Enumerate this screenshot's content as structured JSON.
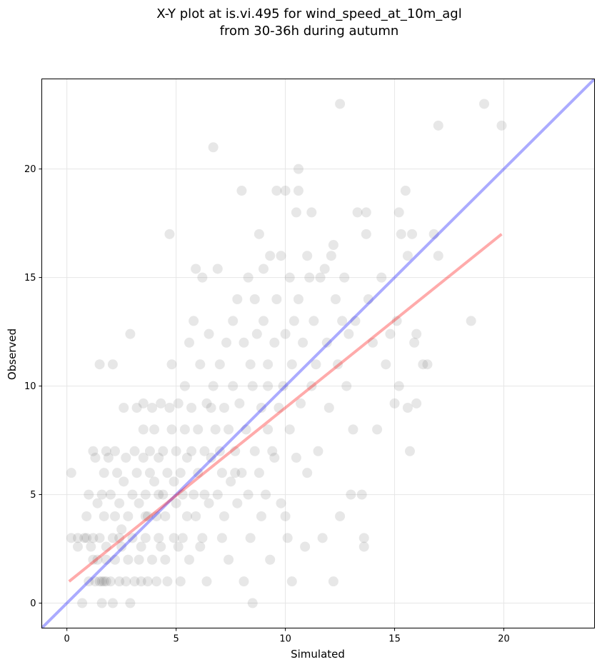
{
  "chart_data": {
    "type": "scatter",
    "title": "X-Y plot at is.vi.495 for wind_speed_at_10m_agl",
    "subtitle": "from 30-36h during autumn",
    "xlabel": "Simulated",
    "ylabel": "Observed",
    "xlim": [
      -1.15,
      24.15
    ],
    "ylim": [
      -1.15,
      24.15
    ],
    "xticks": [
      0,
      5,
      10,
      15,
      20
    ],
    "yticks": [
      0,
      5,
      10,
      15,
      20
    ],
    "grid": true,
    "point_color": "#555555",
    "series": [
      {
        "values": [
          [
            0.2,
            6
          ],
          [
            0.2,
            3
          ],
          [
            0.5,
            3
          ],
          [
            0.5,
            2.6
          ],
          [
            0.7,
            0
          ],
          [
            0.8,
            3
          ],
          [
            0.9,
            4
          ],
          [
            1.0,
            5
          ],
          [
            0.9,
            3
          ],
          [
            1.0,
            1
          ],
          [
            1.1,
            2.6
          ],
          [
            1.2,
            2
          ],
          [
            1.2,
            3
          ],
          [
            1.3,
            1
          ],
          [
            1.2,
            7
          ],
          [
            1.3,
            6.7
          ],
          [
            1.4,
            4.6
          ],
          [
            1.4,
            2
          ],
          [
            1.5,
            1
          ],
          [
            1.5,
            3
          ],
          [
            1.6,
            5
          ],
          [
            1.6,
            0
          ],
          [
            1.7,
            6
          ],
          [
            1.7,
            4
          ],
          [
            1.7,
            1
          ],
          [
            1.8,
            2
          ],
          [
            1.8,
            2.6
          ],
          [
            1.8,
            7
          ],
          [
            1.9,
            6.7
          ],
          [
            2.0,
            1
          ],
          [
            2.0,
            5
          ],
          [
            2.1,
            3
          ],
          [
            2.1,
            0
          ],
          [
            2.2,
            4
          ],
          [
            2.2,
            2
          ],
          [
            2.3,
            6
          ],
          [
            2.2,
            7
          ],
          [
            2.4,
            1
          ],
          [
            2.4,
            4.6
          ],
          [
            2.5,
            2.6
          ],
          [
            2.5,
            3.4
          ],
          [
            2.6,
            5.6
          ],
          [
            2.6,
            9
          ],
          [
            2.7,
            1
          ],
          [
            2.7,
            6.7
          ],
          [
            2.8,
            4
          ],
          [
            2.8,
            2
          ],
          [
            2.9,
            12.4
          ],
          [
            2.9,
            0
          ],
          [
            3.0,
            5
          ],
          [
            3.0,
            3
          ],
          [
            3.1,
            7
          ],
          [
            3.1,
            1
          ],
          [
            3.2,
            9
          ],
          [
            3.2,
            6
          ],
          [
            3.3,
            2
          ],
          [
            3.3,
            4.6
          ],
          [
            3.4,
            2.6
          ],
          [
            3.4,
            1
          ],
          [
            3.5,
            9.2
          ],
          [
            3.5,
            6.7
          ],
          [
            3.5,
            8
          ],
          [
            3.6,
            5
          ],
          [
            3.6,
            3
          ],
          [
            3.7,
            4
          ],
          [
            3.7,
            1
          ],
          [
            3.8,
            7
          ],
          [
            3.8,
            6
          ],
          [
            3.9,
            9
          ],
          [
            3.9,
            2
          ],
          [
            4.0,
            8
          ],
          [
            4.0,
            5.6
          ],
          [
            4.1,
            4
          ],
          [
            4.1,
            1
          ],
          [
            4.2,
            6.7
          ],
          [
            4.2,
            3
          ],
          [
            4.3,
            9.2
          ],
          [
            4.3,
            2.6
          ],
          [
            4.4,
            5
          ],
          [
            4.4,
            7
          ],
          [
            4.5,
            4
          ],
          [
            4.5,
            2
          ],
          [
            4.6,
            6
          ],
          [
            4.6,
            1
          ],
          [
            4.7,
            9
          ],
          [
            4.7,
            17
          ],
          [
            4.8,
            11
          ],
          [
            4.8,
            8
          ],
          [
            4.9,
            3
          ],
          [
            4.9,
            5.6
          ],
          [
            5.0,
            7
          ],
          [
            5.0,
            4.6
          ],
          [
            5.1,
            9.2
          ],
          [
            5.1,
            2.6
          ],
          [
            5.2,
            6
          ],
          [
            5.2,
            1
          ],
          [
            5.3,
            5
          ],
          [
            5.3,
            3
          ],
          [
            5.4,
            10
          ],
          [
            5.4,
            8
          ],
          [
            5.5,
            4
          ],
          [
            5.5,
            6.7
          ],
          [
            5.6,
            12
          ],
          [
            5.6,
            2
          ],
          [
            5.7,
            7
          ],
          [
            5.7,
            9
          ],
          [
            5.8,
            13
          ],
          [
            5.8,
            5
          ],
          [
            5.9,
            15.4
          ],
          [
            5.9,
            4
          ],
          [
            6.0,
            6
          ],
          [
            6.0,
            8
          ],
          [
            6.1,
            11
          ],
          [
            6.1,
            2.6
          ],
          [
            6.2,
            3
          ],
          [
            6.2,
            15
          ],
          [
            6.3,
            5
          ],
          [
            6.3,
            7
          ],
          [
            6.4,
            1
          ],
          [
            6.4,
            9.2
          ],
          [
            6.5,
            12.4
          ],
          [
            6.5,
            4.6
          ],
          [
            6.6,
            6.7
          ],
          [
            6.7,
            10
          ],
          [
            6.7,
            21
          ],
          [
            6.8,
            8
          ],
          [
            6.9,
            5
          ],
          [
            6.9,
            15.4
          ],
          [
            7.0,
            7
          ],
          [
            7.0,
            11
          ],
          [
            7.1,
            3
          ],
          [
            7.1,
            6
          ],
          [
            7.2,
            9
          ],
          [
            7.2,
            4
          ],
          [
            7.3,
            12
          ],
          [
            7.4,
            8
          ],
          [
            7.4,
            2
          ],
          [
            7.5,
            5.6
          ],
          [
            7.6,
            13
          ],
          [
            7.6,
            10
          ],
          [
            7.7,
            7
          ],
          [
            7.8,
            14
          ],
          [
            7.8,
            4.6
          ],
          [
            7.9,
            9.2
          ],
          [
            8.0,
            19
          ],
          [
            8.0,
            6
          ],
          [
            8.1,
            1
          ],
          [
            8.1,
            12
          ],
          [
            8.2,
            8
          ],
          [
            8.3,
            15
          ],
          [
            8.3,
            5
          ],
          [
            8.4,
            11
          ],
          [
            8.4,
            3
          ],
          [
            8.5,
            10
          ],
          [
            8.5,
            0
          ],
          [
            8.6,
            7
          ],
          [
            8.6,
            14
          ],
          [
            8.7,
            12.4
          ],
          [
            8.8,
            17
          ],
          [
            8.8,
            6
          ],
          [
            8.9,
            9
          ],
          [
            8.9,
            4
          ],
          [
            9.0,
            13
          ],
          [
            9.0,
            15.4
          ],
          [
            9.1,
            5
          ],
          [
            9.2,
            11
          ],
          [
            9.2,
            8
          ],
          [
            9.3,
            16
          ],
          [
            9.3,
            2
          ],
          [
            9.4,
            7
          ],
          [
            9.5,
            12
          ],
          [
            9.5,
            6.7
          ],
          [
            9.6,
            14
          ],
          [
            9.6,
            19
          ],
          [
            9.7,
            9
          ],
          [
            9.8,
            16
          ],
          [
            9.8,
            4.6
          ],
          [
            9.9,
            10
          ],
          [
            10.0,
            19
          ],
          [
            10.0,
            4
          ],
          [
            10.0,
            12.4
          ],
          [
            10.1,
            3
          ],
          [
            10.2,
            15
          ],
          [
            10.2,
            8
          ],
          [
            10.3,
            11
          ],
          [
            10.3,
            1
          ],
          [
            10.4,
            13
          ],
          [
            10.5,
            18
          ],
          [
            10.5,
            6.7
          ],
          [
            10.6,
            20
          ],
          [
            10.6,
            14
          ],
          [
            10.6,
            19
          ],
          [
            10.7,
            9.2
          ],
          [
            10.8,
            12
          ],
          [
            10.9,
            2.6
          ],
          [
            11.0,
            16
          ],
          [
            11.0,
            6
          ],
          [
            11.1,
            15
          ],
          [
            11.2,
            18
          ],
          [
            11.2,
            10
          ],
          [
            11.3,
            13
          ],
          [
            11.4,
            11
          ],
          [
            11.5,
            7
          ],
          [
            11.6,
            15
          ],
          [
            11.7,
            3
          ],
          [
            11.8,
            15.4
          ],
          [
            11.9,
            12
          ],
          [
            12.0,
            9
          ],
          [
            12.1,
            16
          ],
          [
            12.2,
            16.5
          ],
          [
            12.2,
            1
          ],
          [
            12.3,
            14
          ],
          [
            12.4,
            11
          ],
          [
            12.5,
            23
          ],
          [
            12.5,
            4
          ],
          [
            12.6,
            13
          ],
          [
            12.7,
            15
          ],
          [
            12.8,
            10
          ],
          [
            12.9,
            12.4
          ],
          [
            13.0,
            5
          ],
          [
            13.1,
            8
          ],
          [
            13.2,
            13
          ],
          [
            13.3,
            18
          ],
          [
            13.5,
            5
          ],
          [
            13.6,
            3
          ],
          [
            13.6,
            2.6
          ],
          [
            13.7,
            17
          ],
          [
            13.7,
            18
          ],
          [
            13.8,
            14
          ],
          [
            14.0,
            12
          ],
          [
            14.2,
            8
          ],
          [
            14.4,
            15
          ],
          [
            14.6,
            11
          ],
          [
            14.8,
            12.4
          ],
          [
            15.0,
            9.2
          ],
          [
            15.1,
            13
          ],
          [
            15.2,
            18
          ],
          [
            15.2,
            10
          ],
          [
            15.3,
            17
          ],
          [
            15.5,
            19
          ],
          [
            15.6,
            16
          ],
          [
            15.6,
            9
          ],
          [
            15.7,
            7
          ],
          [
            15.8,
            17
          ],
          [
            15.9,
            12
          ],
          [
            16.0,
            9.2
          ],
          [
            16.0,
            12.4
          ],
          [
            16.3,
            11
          ],
          [
            16.5,
            11
          ],
          [
            16.8,
            17
          ],
          [
            17.0,
            22
          ],
          [
            17.0,
            16
          ],
          [
            18.5,
            13
          ],
          [
            19.1,
            23
          ],
          [
            19.9,
            22
          ],
          [
            1.5,
            11
          ],
          [
            2.1,
            11
          ],
          [
            1.6,
            1
          ],
          [
            1.8,
            1
          ],
          [
            2.4,
            3
          ],
          [
            3.6,
            4
          ],
          [
            4.2,
            5
          ],
          [
            6.6,
            9
          ],
          [
            7.7,
            6
          ],
          [
            9.2,
            10
          ]
        ]
      }
    ],
    "reference_lines": [
      {
        "color": "#0000ff",
        "from": [
          -1.15,
          -1.15
        ],
        "to": [
          24.15,
          24.15
        ]
      },
      {
        "color": "#ff0000",
        "from": [
          0.1,
          1.0
        ],
        "to": [
          19.9,
          17.0
        ]
      }
    ]
  }
}
